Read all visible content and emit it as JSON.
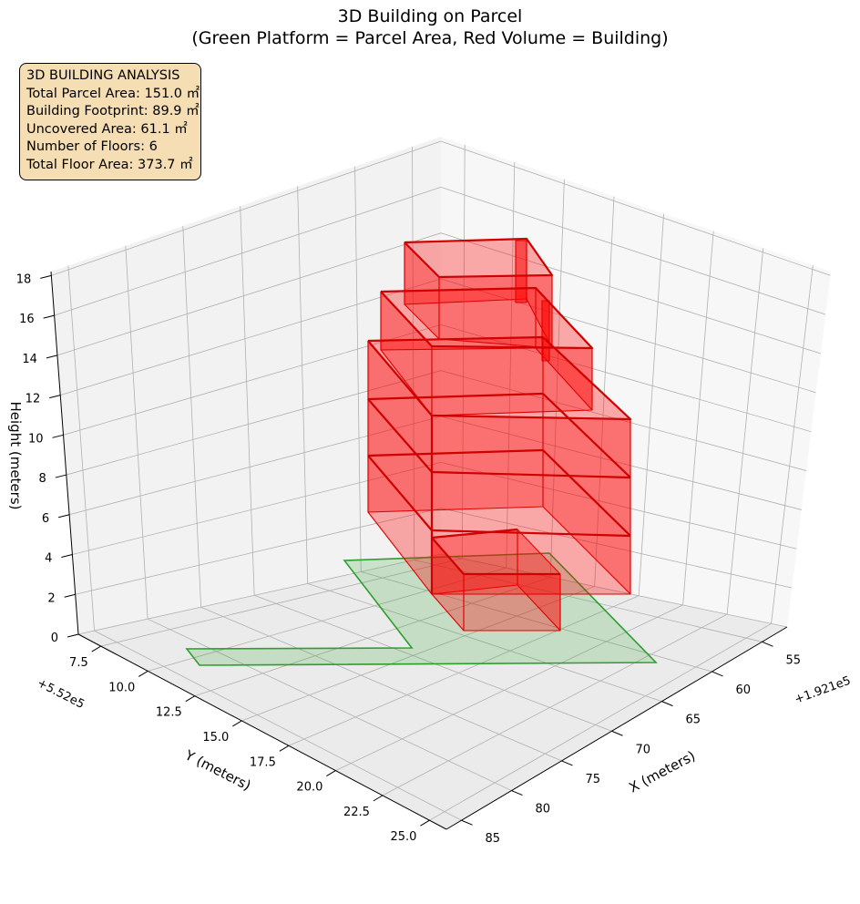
{
  "chart_data": {
    "type": "3d-volume",
    "title": [
      "3D Building on Parcel",
      "(Green Platform = Parcel Area, Red Volume = Building)"
    ],
    "xlabel": "X (meters)",
    "ylabel": "Y (meters)",
    "zlabel": "Height (meters)",
    "x_offset_label": "+1.921e5",
    "y_offset_label": "+5.52e5",
    "x_ticks": [
      "55",
      "60",
      "65",
      "70",
      "75",
      "80",
      "85"
    ],
    "y_ticks": [
      "7.5",
      "10.0",
      "12.5",
      "15.0",
      "17.5",
      "20.0",
      "22.5",
      "25.0"
    ],
    "z_ticks": [
      "0",
      "2",
      "4",
      "6",
      "8",
      "10",
      "12",
      "14",
      "16",
      "18"
    ],
    "grid": true,
    "parcel_color": "#2ca02c",
    "building_color": "#ff0000",
    "info_box": [
      "3D BUILDING ANALYSIS",
      "Total Parcel Area: 151.0 ㎡",
      "Building Footprint: 89.9 ㎡",
      "Uncovered Area: 61.1 ㎡",
      "Number of Floors: 6",
      "Total Floor Area: 373.7 ㎡"
    ]
  }
}
